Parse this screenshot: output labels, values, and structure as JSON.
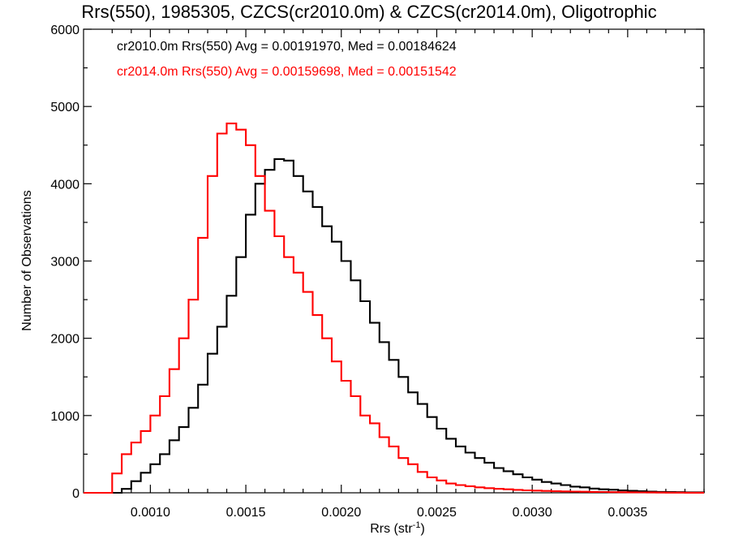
{
  "chart_data": {
    "type": "line",
    "title": "Rrs(550), 1985305, CZCS(cr2010.0m) & CZCS(cr2014.0m), Oligotrophic",
    "xlabel": "Rrs (str",
    "xlabel_superscript": "-1",
    "xlabel_suffix": ")",
    "ylabel": "Number of Observations",
    "xlim": [
      0.00065,
      0.0039
    ],
    "ylim": [
      0,
      6000
    ],
    "x_ticks": [
      0.001,
      0.0015,
      0.002,
      0.0025,
      0.003,
      0.0035
    ],
    "x_tick_labels": [
      "0.0010",
      "0.0015",
      "0.0020",
      "0.0025",
      "0.0030",
      "0.0035"
    ],
    "y_ticks": [
      0,
      1000,
      2000,
      3000,
      4000,
      5000,
      6000
    ],
    "y_tick_labels": [
      "0",
      "1000",
      "2000",
      "3000",
      "4000",
      "5000",
      "6000"
    ],
    "grid": false,
    "legend_placement": "top-left",
    "legend": [
      {
        "text": "cr2010.0m Rrs(550) Avg = 0.00191970, Med = 0.00184624",
        "color": "#000000"
      },
      {
        "text": "cr2014.0m Rrs(550) Avg = 0.00159698, Med = 0.00151542",
        "color": "#ff0000"
      }
    ],
    "series": [
      {
        "color": "#000000",
        "x": [
          0.00065,
          0.0008,
          0.00085,
          0.0009,
          0.00095,
          0.001,
          0.00105,
          0.0011,
          0.00115,
          0.0012,
          0.00125,
          0.0013,
          0.00135,
          0.0014,
          0.00145,
          0.0015,
          0.00155,
          0.0016,
          0.00165,
          0.0017,
          0.00175,
          0.0018,
          0.00185,
          0.0019,
          0.00195,
          0.002,
          0.00205,
          0.0021,
          0.00215,
          0.0022,
          0.00225,
          0.0023,
          0.00235,
          0.0024,
          0.00245,
          0.0025,
          0.00255,
          0.0026,
          0.00265,
          0.0027,
          0.00275,
          0.0028,
          0.00285,
          0.0029,
          0.00295,
          0.003,
          0.00305,
          0.0031,
          0.00315,
          0.0032,
          0.00325,
          0.0033,
          0.00335,
          0.0034,
          0.00345,
          0.0035,
          0.00355,
          0.0036,
          0.00365,
          0.0037,
          0.00375,
          0.0038,
          0.0039
        ],
        "values": [
          0,
          0,
          50,
          150,
          260,
          370,
          500,
          680,
          850,
          1100,
          1400,
          1800,
          2150,
          2550,
          3050,
          3600,
          4000,
          4180,
          4320,
          4300,
          4100,
          3900,
          3700,
          3450,
          3250,
          3000,
          2750,
          2480,
          2200,
          1950,
          1720,
          1500,
          1300,
          1150,
          980,
          830,
          700,
          600,
          520,
          450,
          390,
          320,
          280,
          240,
          200,
          170,
          140,
          120,
          100,
          80,
          70,
          55,
          45,
          40,
          30,
          25,
          20,
          15,
          12,
          10,
          8,
          6,
          5
        ]
      },
      {
        "color": "#ff0000",
        "x": [
          0.00065,
          0.00079,
          0.0008,
          0.00085,
          0.0009,
          0.00095,
          0.001,
          0.00105,
          0.0011,
          0.00115,
          0.0012,
          0.00125,
          0.0013,
          0.00135,
          0.0014,
          0.00145,
          0.0015,
          0.00155,
          0.0016,
          0.00165,
          0.0017,
          0.00175,
          0.0018,
          0.00185,
          0.0019,
          0.00195,
          0.002,
          0.00205,
          0.0021,
          0.00215,
          0.0022,
          0.00225,
          0.0023,
          0.00235,
          0.0024,
          0.00245,
          0.0025,
          0.00255,
          0.0026,
          0.00265,
          0.0027,
          0.00275,
          0.0028,
          0.00285,
          0.0029,
          0.00295,
          0.003,
          0.00305,
          0.0031,
          0.00315,
          0.0032,
          0.00325,
          0.0033,
          0.00335,
          0.0034,
          0.00345,
          0.0035,
          0.00355,
          0.0036,
          0.00365,
          0.0037,
          0.00375,
          0.0038,
          0.0039
        ],
        "values": [
          0,
          0,
          250,
          500,
          650,
          800,
          1000,
          1250,
          1600,
          2000,
          2500,
          3300,
          4100,
          4650,
          4780,
          4700,
          4500,
          4100,
          3650,
          3320,
          3050,
          2850,
          2600,
          2300,
          2000,
          1700,
          1450,
          1250,
          1000,
          900,
          720,
          600,
          450,
          370,
          270,
          200,
          160,
          120,
          100,
          85,
          70,
          60,
          52,
          45,
          38,
          32,
          28,
          24,
          20,
          18,
          16,
          14,
          12,
          10,
          8,
          7,
          6,
          5,
          4,
          3,
          2,
          2,
          1,
          1
        ]
      }
    ]
  }
}
